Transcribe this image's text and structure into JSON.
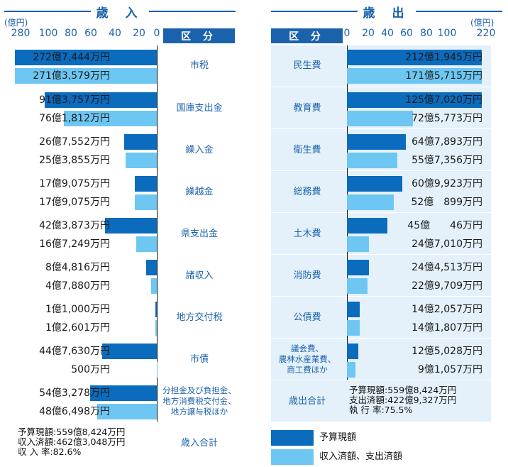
{
  "revenue": {
    "title": "歳 入",
    "unit": "(億円)",
    "header": "区 分",
    "ticks": [
      "280",
      "100",
      "80",
      "60",
      "40",
      "20",
      "0"
    ],
    "items": [
      {
        "category": "市税",
        "budget_label": "272億7,444万円",
        "actual_label": "271億3,579万円"
      },
      {
        "category": "国庫支出金",
        "budget_label": "91億3,757万円",
        "actual_label": "76億1,812万円"
      },
      {
        "category": "繰入金",
        "budget_label": "26億7,552万円",
        "actual_label": "25億3,855万円"
      },
      {
        "category": "繰越金",
        "budget_label": "17億9,075万円",
        "actual_label": "17億9,075万円"
      },
      {
        "category": "県支出金",
        "budget_label": "42億3,873万円",
        "actual_label": "16億7,249万円"
      },
      {
        "category": "諸収入",
        "budget_label": "8億4,816万円",
        "actual_label": "4億7,880万円"
      },
      {
        "category": "地方交付税",
        "budget_label": "1億1,000万円",
        "actual_label": "1億2,601万円"
      },
      {
        "category": "市債",
        "budget_label": "44億7,630万円",
        "actual_label": "500万円"
      },
      {
        "category": "分担金及び負担金、\n地方消費税交付金、\n地方譲与税ほか",
        "budget_label": "54億3,278万円",
        "actual_label": "48億6,498万円"
      }
    ],
    "total": {
      "category": "歳入合計",
      "line1": "予算現額:559億8,424万円",
      "line2": "収入済額:462億3,048万円",
      "line3": "収 入 率:82.6%"
    }
  },
  "expenditure": {
    "title": "歳 出",
    "unit": "(億円)",
    "header": "区 分",
    "ticks": [
      "0",
      "20",
      "40",
      "60",
      "80",
      "100",
      "220"
    ],
    "items": [
      {
        "category": "民生費",
        "budget_label": "212億1,945万円",
        "actual_label": "171億5,715万円"
      },
      {
        "category": "教育費",
        "budget_label": "125億7,020万円",
        "actual_label": "72億5,773万円"
      },
      {
        "category": "衛生費",
        "budget_label": "64億7,893万円",
        "actual_label": "55億7,356万円"
      },
      {
        "category": "総務費",
        "budget_label": "60億9,923万円",
        "actual_label": "52億　899万円"
      },
      {
        "category": "土木費",
        "budget_label": "45億　　46万円",
        "actual_label": "24億7,010万円"
      },
      {
        "category": "消防費",
        "budget_label": "24億4,513万円",
        "actual_label": "22億9,709万円"
      },
      {
        "category": "公債費",
        "budget_label": "14億2,057万円",
        "actual_label": "14億1,807万円"
      },
      {
        "category": "議会費、\n農林水産業費、\n商工費ほか",
        "budget_label": "12億5,028万円",
        "actual_label": "9億1,057万円"
      }
    ],
    "total": {
      "category": "歳出合計",
      "line1": "予算現額:559億8,424万円",
      "line2": "支出済額:422億9,327万円",
      "line3": "執 行 率:75.5%"
    }
  },
  "legend": {
    "budget": "予算現額",
    "actual": "収入済額、支出済額",
    "budget_color": "#0b6bbd",
    "actual_color": "#6ec7f2"
  },
  "chart_data": [
    {
      "type": "bar",
      "title": "歳入",
      "unit": "億円",
      "categories": [
        "市税",
        "国庫支出金",
        "繰入金",
        "繰越金",
        "県支出金",
        "諸収入",
        "地方交付税",
        "市債",
        "分担金及び負担金、地方消費税交付金、地方譲与税ほか"
      ],
      "series": [
        {
          "name": "予算現額",
          "values": [
            272.7444,
            91.3757,
            26.7552,
            17.9075,
            42.3873,
            8.4816,
            1.1,
            44.763,
            54.3278
          ]
        },
        {
          "name": "収入済額、支出済額",
          "values": [
            271.3579,
            76.1812,
            25.3855,
            17.9075,
            16.7249,
            4.788,
            1.2601,
            0.05,
            48.6498
          ]
        }
      ],
      "axis_ticks": [
        280,
        100,
        80,
        60,
        40,
        20,
        0
      ],
      "axis_break": true
    },
    {
      "type": "bar",
      "title": "歳出",
      "unit": "億円",
      "categories": [
        "民生費",
        "教育費",
        "衛生費",
        "総務費",
        "土木費",
        "消防費",
        "公債費",
        "議会費、農林水産業費、商工費ほか"
      ],
      "series": [
        {
          "name": "予算現額",
          "values": [
            212.1945,
            125.702,
            64.7893,
            60.9923,
            45.0046,
            24.4513,
            14.2057,
            12.5028
          ]
        },
        {
          "name": "収入済額、支出済額",
          "values": [
            171.5715,
            72.5773,
            55.7356,
            52.0899,
            24.701,
            22.9709,
            14.1807,
            9.1057
          ]
        }
      ],
      "axis_ticks": [
        0,
        20,
        40,
        60,
        80,
        100,
        220
      ],
      "axis_break": true
    }
  ]
}
